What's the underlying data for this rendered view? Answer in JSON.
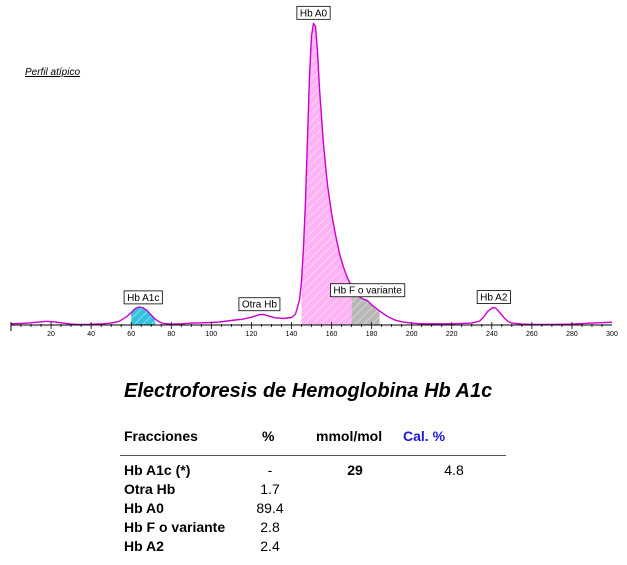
{
  "profile_note": "Perfil atípico",
  "report": {
    "title": "Electroforesis de Hemoglobina Hb A1c",
    "headers": {
      "fraction": "Fracciones",
      "percent": "%",
      "mmol": "mmol/mol",
      "cal": "Cal. %"
    },
    "rows": [
      {
        "name": "Hb A1c (*)",
        "percent": "-",
        "mmol": "29",
        "cal": "4.8"
      },
      {
        "name": "Otra Hb",
        "percent": "1.7",
        "mmol": "",
        "cal": ""
      },
      {
        "name": "Hb A0",
        "percent": "89.4",
        "mmol": "",
        "cal": ""
      },
      {
        "name": "Hb F o variante",
        "percent": "2.8",
        "mmol": "",
        "cal": ""
      },
      {
        "name": "Hb A2",
        "percent": "2.4",
        "mmol": "",
        "cal": ""
      }
    ]
  },
  "colors": {
    "curve": "#cc00cc",
    "hba1c_fill": "#33c3e0",
    "hba0_fill": "#ffb3f5",
    "hbf_fill": "#b8b8b8",
    "axis": "#000000",
    "cal_header": "#1a1ad6"
  },
  "chart_data": {
    "type": "line",
    "title": "",
    "xlabel": "",
    "ylabel": "",
    "xlim": [
      0,
      300
    ],
    "ylim": [
      0,
      100
    ],
    "x_ticks": [
      20,
      40,
      60,
      80,
      100,
      120,
      140,
      160,
      180,
      200,
      220,
      240,
      260,
      280,
      300
    ],
    "grid": false,
    "legend": "none",
    "series": [
      {
        "x": [
          0,
          5,
          10,
          14,
          18,
          22,
          26,
          30,
          34,
          38,
          42,
          46,
          50,
          54,
          58,
          60,
          62,
          64,
          66,
          68,
          70,
          72,
          74,
          76,
          80,
          85,
          90,
          95,
          100,
          104,
          108,
          112,
          116,
          120,
          124,
          126,
          128,
          132,
          136,
          140,
          142,
          144,
          145,
          146,
          147,
          148,
          149,
          150,
          151,
          152,
          153,
          154,
          156,
          158,
          160,
          162,
          164,
          166,
          168,
          170,
          172,
          174,
          176,
          178,
          180,
          184,
          188,
          192,
          196,
          200,
          205,
          210,
          215,
          220,
          225,
          230,
          234,
          236,
          238,
          240,
          241,
          242,
          244,
          246,
          248,
          250,
          255,
          260,
          270,
          280,
          290,
          300
        ],
        "y": [
          0.4,
          0.5,
          0.7,
          1.0,
          1.2,
          1.0,
          0.6,
          0.3,
          0.2,
          0.2,
          0.3,
          0.4,
          0.6,
          1.2,
          2.8,
          4.0,
          5.3,
          5.8,
          5.5,
          4.6,
          3.2,
          1.9,
          1.0,
          0.5,
          0.3,
          0.4,
          0.6,
          0.7,
          0.8,
          1.0,
          1.3,
          1.6,
          1.9,
          2.5,
          3.3,
          3.4,
          3.0,
          2.3,
          2.1,
          2.4,
          3.5,
          8.0,
          14.0,
          25.0,
          40.0,
          60.0,
          80.0,
          93.0,
          97.0,
          96.0,
          88.0,
          76.0,
          58.0,
          45.0,
          36.0,
          29.0,
          23.0,
          18.5,
          15.0,
          12.5,
          10.5,
          9.0,
          8.3,
          7.8,
          6.5,
          4.5,
          2.7,
          1.5,
          0.9,
          0.6,
          0.4,
          0.4,
          0.4,
          0.4,
          0.5,
          0.6,
          1.3,
          2.6,
          4.4,
          5.4,
          5.6,
          5.4,
          4.0,
          2.4,
          1.2,
          0.6,
          0.3,
          0.2,
          0.2,
          0.3,
          0.6,
          0.9
        ]
      }
    ],
    "peak_labels": [
      {
        "text": "Hb A1c",
        "x": 66
      },
      {
        "text": "Otra Hb",
        "x": 124
      },
      {
        "text": "Hb A0",
        "x": 151
      },
      {
        "text": "Hb F o variante",
        "x": 178
      },
      {
        "text": "Hb A2",
        "x": 241
      }
    ],
    "shaded_regions": [
      {
        "name": "Hb A1c",
        "from": 60,
        "to": 72,
        "color": "#33c3e0"
      },
      {
        "name": "Hb A0",
        "from": 145,
        "to": 170,
        "color": "#ffb3f5"
      },
      {
        "name": "Hb F o variante",
        "from": 170,
        "to": 184,
        "color": "#b8b8b8"
      }
    ]
  }
}
